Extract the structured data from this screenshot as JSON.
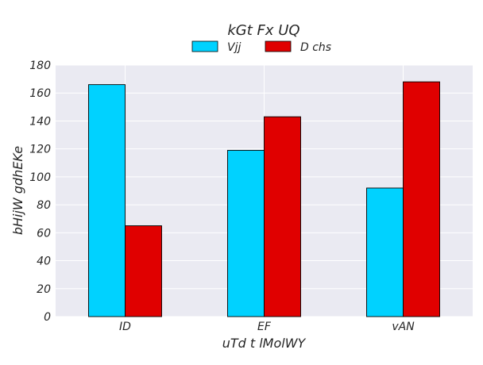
{
  "chart_data": {
    "type": "bar",
    "title": "kGt Fx UQ",
    "xlabel": "uTd t  lMolWY",
    "ylabel": "bHijW gdhEKe",
    "categories": [
      "ID",
      "EF",
      "vAN"
    ],
    "series": [
      {
        "name": "Vjj",
        "values": [
          166,
          119,
          92
        ],
        "color": "#00d2ff"
      },
      {
        "name": "D chs",
        "values": [
          65,
          143,
          168
        ],
        "color": "#e00000"
      }
    ],
    "ylim": [
      0,
      180
    ],
    "yticks": [
      0,
      20,
      40,
      60,
      80,
      100,
      120,
      140,
      160,
      180
    ],
    "grid": true,
    "legend_position": "top-center",
    "plot_background": "#eaeaf2",
    "grid_color": "#ffffff"
  }
}
